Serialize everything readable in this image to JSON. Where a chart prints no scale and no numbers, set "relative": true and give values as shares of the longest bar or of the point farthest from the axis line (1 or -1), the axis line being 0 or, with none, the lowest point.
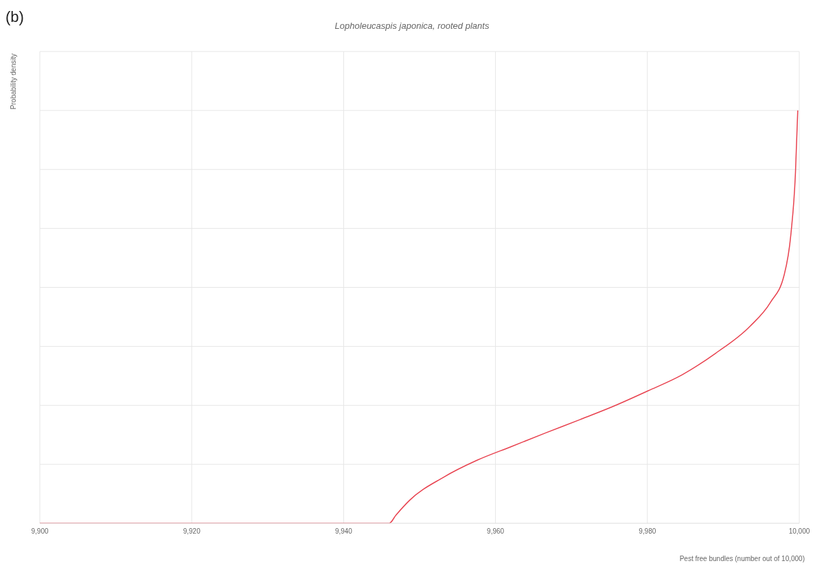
{
  "chart_data": {
    "type": "line",
    "title": "Lopholeucaspis japonica, rooted plants",
    "xlabel": "Pest free bundles (number out of 10,000)",
    "ylabel": "Probability density",
    "annotations": [
      "(b)"
    ],
    "relative": true,
    "x": [
      9900,
      9946,
      9946.9,
      9948.7,
      9953.1,
      9957.6,
      9962.1,
      9966.6,
      9971.1,
      9975.6,
      9980.1,
      9984.6,
      9989,
      9993.5,
      9996.2,
      9998,
      9998.9,
      9999.5,
      9999.8
    ],
    "series": [
      {
        "color": "#e8424f",
        "values": [
          0,
          0,
          0.02,
          0.056,
          0.111,
          0.153,
          0.186,
          0.219,
          0.251,
          0.284,
          0.321,
          0.36,
          0.412,
          0.477,
          0.535,
          0.601,
          0.701,
          0.85,
          1
        ]
      }
    ],
    "xlim": [
      9900,
      10000
    ],
    "xticks": [
      {
        "value": 9900,
        "label": "9,900"
      },
      {
        "value": 9920,
        "label": "9,920"
      },
      {
        "value": 9940,
        "label": "9,940"
      },
      {
        "value": 9960,
        "label": "9,960"
      },
      {
        "value": 9980,
        "label": "9,980"
      },
      {
        "value": 10000,
        "label": "10,000"
      }
    ],
    "grid": true,
    "marker": "none",
    "line_style": "solid"
  }
}
